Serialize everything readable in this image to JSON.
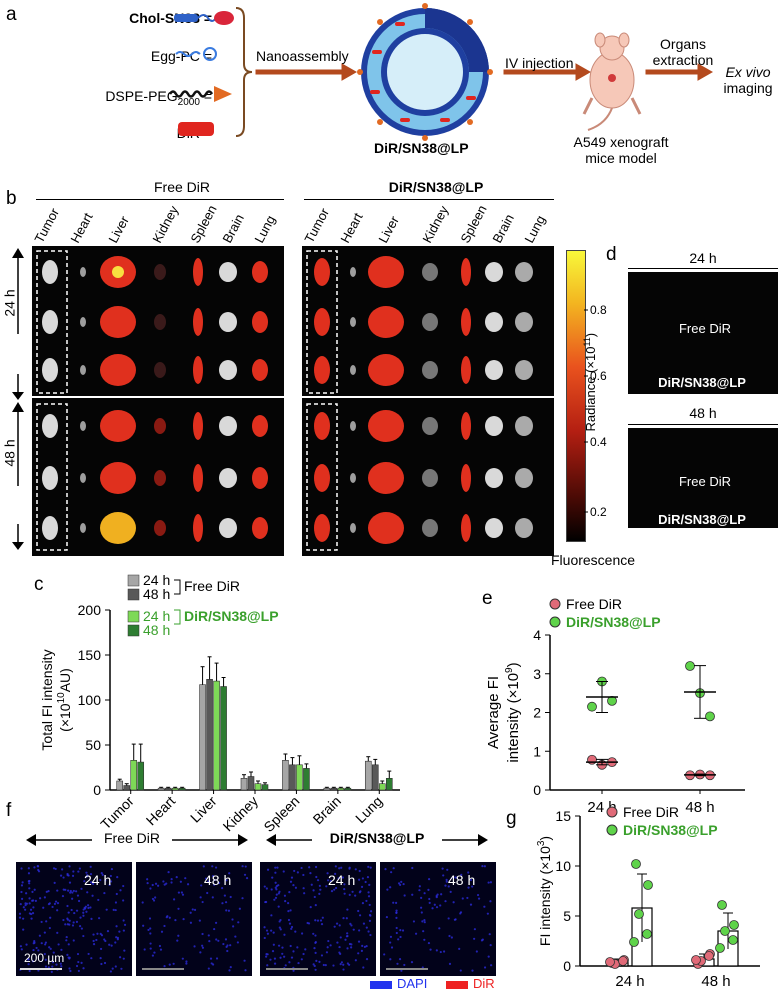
{
  "panel_letters": {
    "a": "a",
    "b": "b",
    "c": "c",
    "d": "d",
    "e": "e",
    "f": "f",
    "g": "g"
  },
  "schematic": {
    "components": [
      {
        "name": "Chol-SN38",
        "eq": "="
      },
      {
        "name": "Egg-PC",
        "eq": "="
      },
      {
        "name": "DSPE-PEG",
        "sub": "2000",
        "eq": "="
      },
      {
        "name": "DiR",
        "eq": "="
      }
    ],
    "step1": "Nanoassembly",
    "product": "DiR/SN38@LP",
    "step2": "IV injection",
    "model": "A549 xenograft",
    "model2": "mice model",
    "step3a": "Organs",
    "step3b": "extraction",
    "final1": "Ex vivo",
    "final2": "imaging"
  },
  "panel_b": {
    "group_free": "Free DiR",
    "group_lp": "DiR/SN38@LP",
    "organs": [
      "Tumor",
      "Heart",
      "Liver",
      "Kidney",
      "Spleen",
      "Brain",
      "Lung"
    ],
    "time_24": "24 h",
    "time_48": "48 h",
    "colorbar_title": "Radiance (×10",
    "colorbar_exp": "11",
    "colorbar_close": ")",
    "colorbar_ticks": [
      "0.8",
      "0.6",
      "0.4",
      "0.2"
    ],
    "colorbar_footer": "Fluorescence"
  },
  "panel_d": {
    "time_24": "24 h",
    "time_48": "48 h",
    "free": "Free DiR",
    "lp": "DiR/SN38@LP"
  },
  "colors": {
    "gray_light": "#a6a6a6",
    "gray_dark": "#595959",
    "green_light": "#7ed957",
    "green_dark": "#2e7d32",
    "free_red": "#e06a78",
    "lp_green": "#5fd34a",
    "legend_green": "#3aa02c"
  },
  "chart_data": [
    {
      "panel": "c",
      "type": "bar",
      "ylabel": "Total FI intensity",
      "ylabel_unit": "(×10",
      "ylabel_exp": "10",
      "ylabel_close": "AU)",
      "ylim": [
        0,
        200
      ],
      "yticks": [
        "0",
        "50",
        "100",
        "150",
        "200"
      ],
      "categories": [
        "Tumor",
        "Heart",
        "Liver",
        "Kidney",
        "Spleen",
        "Brain",
        "Lung"
      ],
      "legend_free": "Free DiR",
      "legend_lp": "DiR/SN38@LP",
      "series": [
        {
          "name": "24 h",
          "group": "Free DiR",
          "values": [
            10,
            2,
            117,
            13,
            33,
            2,
            32
          ],
          "err": [
            2,
            1,
            20,
            4,
            7,
            1,
            5
          ]
        },
        {
          "name": "48 h",
          "group": "Free DiR",
          "values": [
            5,
            2,
            123,
            15,
            28,
            2,
            28
          ],
          "err": [
            2,
            1,
            25,
            5,
            8,
            1,
            6
          ]
        },
        {
          "name": "24 h",
          "group": "DiR/SN38@LP",
          "values": [
            33,
            2,
            121,
            7,
            28,
            2,
            7
          ],
          "err": [
            18,
            1,
            20,
            3,
            10,
            1,
            3
          ]
        },
        {
          "name": "48 h",
          "group": "DiR/SN38@LP",
          "values": [
            31,
            2,
            115,
            6,
            24,
            2,
            13
          ],
          "err": [
            20,
            1,
            10,
            2,
            5,
            1,
            8
          ]
        }
      ]
    },
    {
      "panel": "e",
      "type": "scatter",
      "ylabel1": "Average FI",
      "ylabel2": "intensity (×10",
      "ylabel_exp": "9",
      "ylabel_close": ")",
      "ylim": [
        0,
        4
      ],
      "yticks": [
        "0",
        "1",
        "2",
        "3",
        "4"
      ],
      "categories": [
        "24 h",
        "48 h"
      ],
      "series": [
        {
          "name": "Free DiR",
          "points": [
            [
              0.78,
              0.65,
              0.72
            ],
            [
              0.38,
              0.4,
              0.38
            ]
          ],
          "mean": [
            0.72,
            0.39
          ],
          "sd": [
            0.07,
            0.02
          ]
        },
        {
          "name": "DiR/SN38@LP",
          "points": [
            [
              2.15,
              2.8,
              2.3
            ],
            [
              3.2,
              2.5,
              1.9
            ]
          ],
          "mean": [
            2.4,
            2.53
          ],
          "sd": [
            0.4,
            0.68
          ]
        }
      ]
    },
    {
      "panel": "g",
      "type": "bar",
      "ylabel": "FI intensity (×10",
      "ylabel_exp": "3",
      "ylabel_close": ")",
      "ylim": [
        0,
        15
      ],
      "yticks": [
        "0",
        "5",
        "10",
        "15"
      ],
      "categories": [
        "24 h",
        "48 h"
      ],
      "series": [
        {
          "name": "Free DiR",
          "values": [
            0.4,
            0.7
          ],
          "err": [
            0.3,
            0.5
          ],
          "points": [
            [
              0.3,
              0.6,
              0.2,
              0.5,
              0.4
            ],
            [
              0.2,
              1.2,
              0.5,
              1.0,
              0.6
            ]
          ]
        },
        {
          "name": "DiR/SN38@LP",
          "values": [
            5.8,
            3.5
          ],
          "err": [
            3.4,
            1.8
          ],
          "points": [
            [
              10.2,
              8.1,
              5.2,
              3.2,
              2.4
            ],
            [
              6.1,
              4.1,
              3.5,
              2.6,
              1.8
            ]
          ]
        }
      ]
    }
  ],
  "panel_f": {
    "group_free": "Free DiR",
    "group_lp": "DiR/SN38@LP",
    "t24": "24 h",
    "t48": "48 h",
    "scale": "200 µm",
    "legend_dapi": "DAPI",
    "legend_dir": "DiR"
  }
}
